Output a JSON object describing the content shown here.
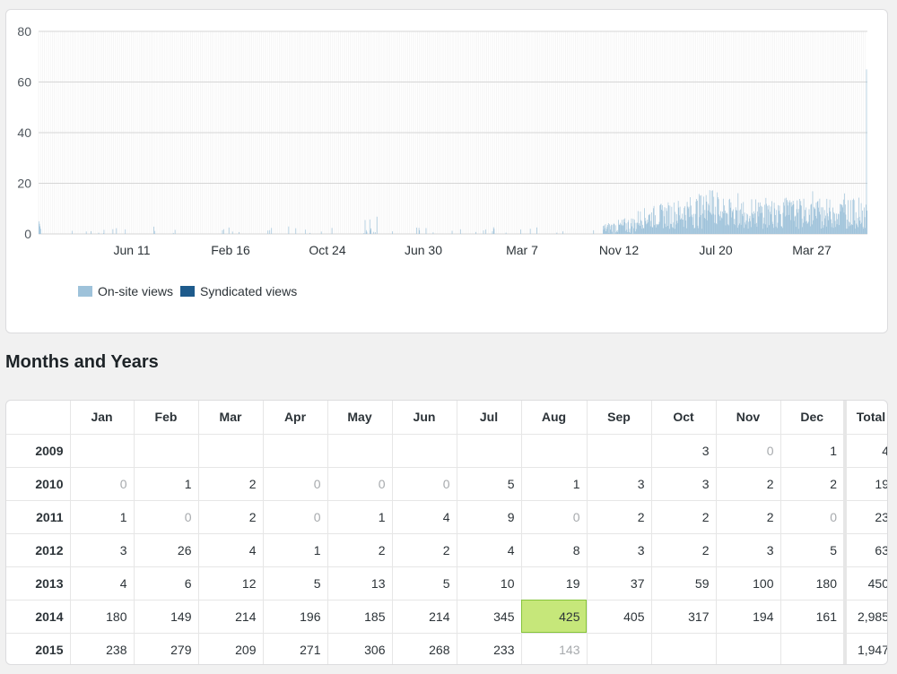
{
  "chart_data": {
    "type": "bar",
    "yticks": [
      "80",
      "60",
      "40",
      "20",
      "0"
    ],
    "ylim": [
      0,
      80
    ],
    "xticks": [
      "Jun 11",
      "Feb 16",
      "Oct 24",
      "Jun 30",
      "Mar 7",
      "Nov 12",
      "Jul 20",
      "Mar 27"
    ],
    "grid": true,
    "legend_position": "bottom-left",
    "series": [
      {
        "name": "On-site views",
        "color": "#9ec2da"
      },
      {
        "name": "Syndicated views",
        "color": "#1e5b8c"
      }
    ],
    "note_values": "daily views; peak near the end of ~65"
  },
  "legend": {
    "onsite_label": "On-site views",
    "syndicated_label": "Syndicated views"
  },
  "section_title": "Months and Years",
  "table": {
    "headers": [
      "",
      "Jan",
      "Feb",
      "Mar",
      "Apr",
      "May",
      "Jun",
      "Jul",
      "Aug",
      "Sep",
      "Oct",
      "Nov",
      "Dec",
      "Total"
    ],
    "rows": [
      {
        "year": "2009",
        "cells": [
          "",
          "",
          "",
          "",
          "",
          "",
          "",
          "",
          "",
          "3",
          "0",
          "1"
        ],
        "total": "4"
      },
      {
        "year": "2010",
        "cells": [
          "0",
          "1",
          "2",
          "0",
          "0",
          "0",
          "5",
          "1",
          "3",
          "3",
          "2",
          "2"
        ],
        "total": "19"
      },
      {
        "year": "2011",
        "cells": [
          "1",
          "0",
          "2",
          "0",
          "1",
          "4",
          "9",
          "0",
          "2",
          "2",
          "2",
          "0"
        ],
        "total": "23"
      },
      {
        "year": "2012",
        "cells": [
          "3",
          "26",
          "4",
          "1",
          "2",
          "2",
          "4",
          "8",
          "3",
          "2",
          "3",
          "5"
        ],
        "total": "63"
      },
      {
        "year": "2013",
        "cells": [
          "4",
          "6",
          "12",
          "5",
          "13",
          "5",
          "10",
          "19",
          "37",
          "59",
          "100",
          "180"
        ],
        "total": "450"
      },
      {
        "year": "2014",
        "cells": [
          "180",
          "149",
          "214",
          "196",
          "185",
          "214",
          "345",
          "425",
          "405",
          "317",
          "194",
          "161"
        ],
        "total": "2,985"
      },
      {
        "year": "2015",
        "cells": [
          "238",
          "279",
          "209",
          "271",
          "306",
          "268",
          "233",
          "143",
          "",
          "",
          "",
          ""
        ],
        "total": "1,947"
      }
    ],
    "highlight": {
      "row": 5,
      "col": 7
    },
    "muted": [
      {
        "row": 6,
        "col": 7
      }
    ]
  }
}
